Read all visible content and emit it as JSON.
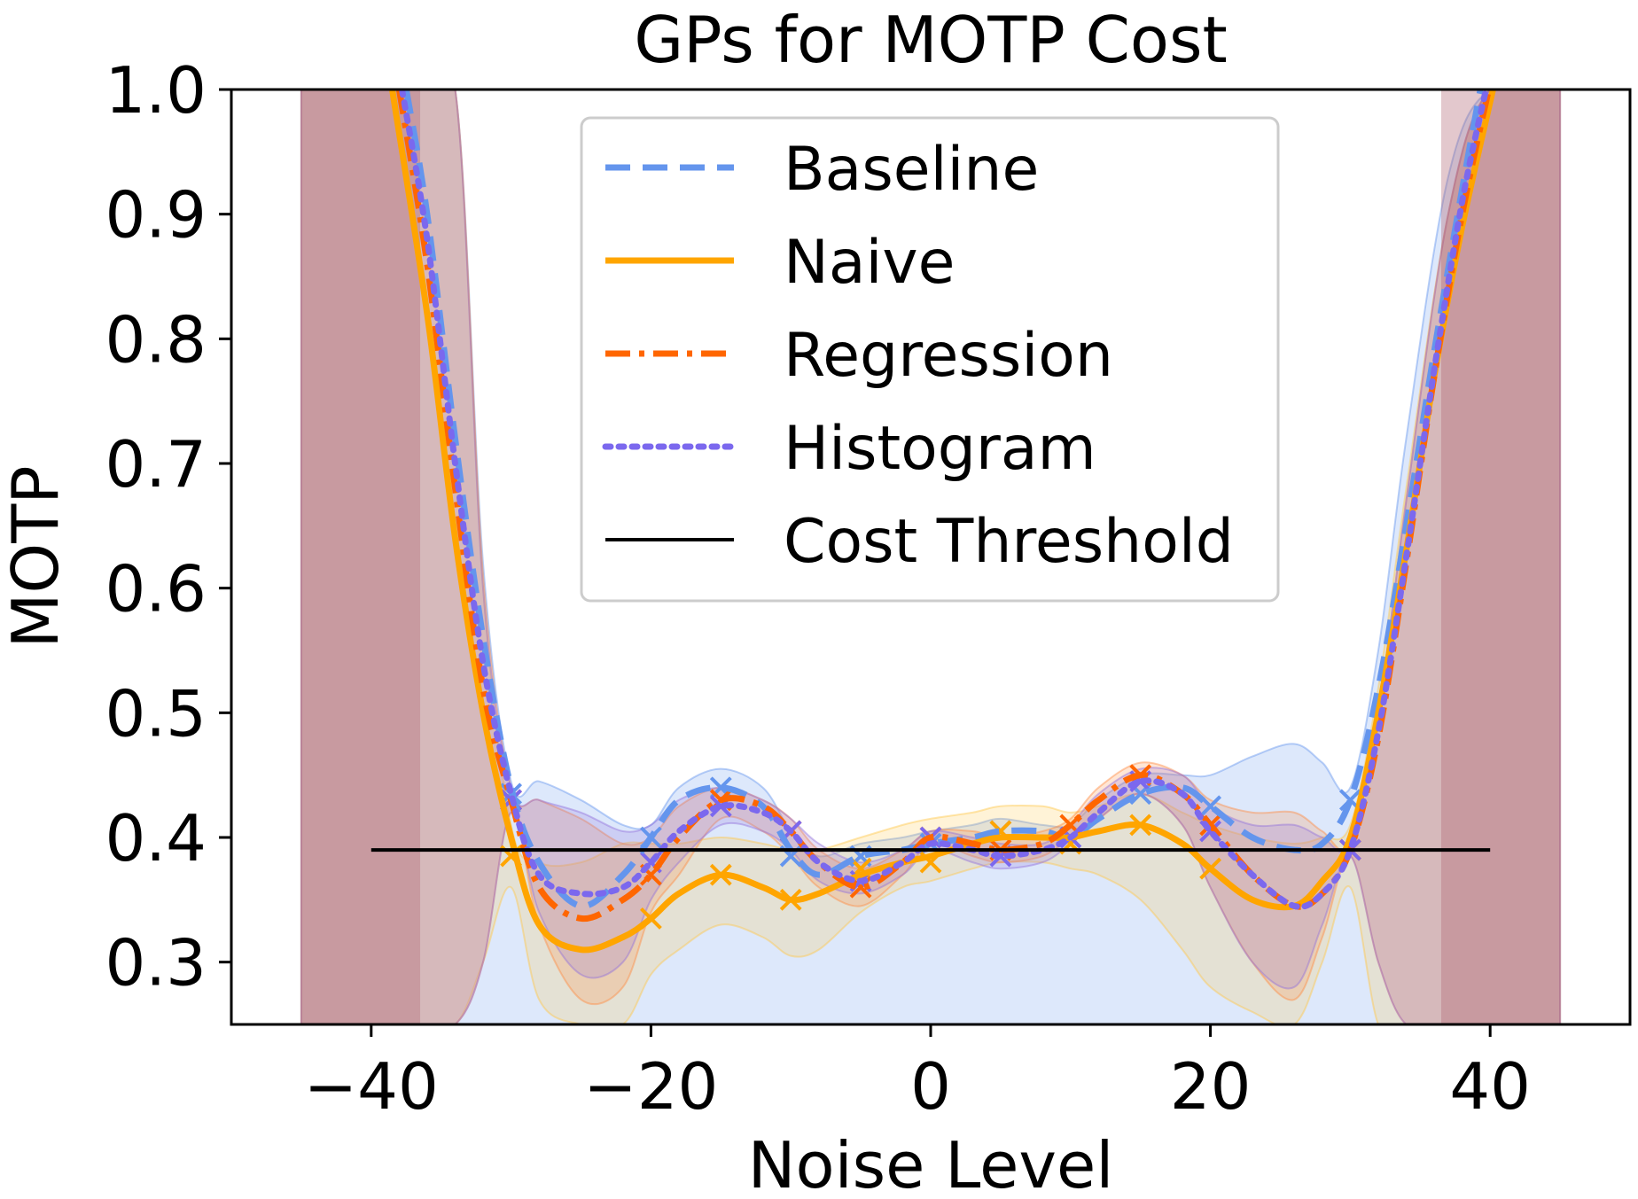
{
  "chart_data": {
    "type": "line",
    "title": "GPs for MOTP Cost",
    "xlabel": "Noise Level",
    "ylabel": "MOTP",
    "xlim": [
      -50,
      50
    ],
    "ylim": [
      0.25,
      1.0
    ],
    "xticks": [
      -40,
      -20,
      0,
      20,
      40
    ],
    "xtick_labels": [
      "−40",
      "−20",
      "0",
      "20",
      "40"
    ],
    "yticks": [
      0.3,
      0.4,
      0.5,
      0.6,
      0.7,
      0.8,
      0.9,
      1.0
    ],
    "ytick_labels": [
      "0.3",
      "0.4",
      "0.5",
      "0.6",
      "0.7",
      "0.8",
      "0.9",
      "1.0"
    ],
    "grid": false,
    "legend_position": "top-center",
    "series": [
      {
        "name": "Baseline",
        "color": "#6495ed",
        "style": "dashed",
        "band_color": "#6495ed",
        "observations": {
          "x": [
            -30,
            -20,
            -15,
            -10,
            -5,
            0,
            5,
            10,
            15,
            20,
            30
          ],
          "y": [
            0.435,
            0.4,
            0.44,
            0.385,
            0.385,
            0.395,
            0.405,
            0.4,
            0.435,
            0.425,
            0.43
          ]
        },
        "mean": {
          "x": [
            -37.5,
            -36,
            -34,
            -32,
            -30,
            -28,
            -25,
            -22,
            -20,
            -18,
            -15,
            -12,
            -10,
            -8,
            -5,
            -2,
            0,
            3,
            5,
            8,
            10,
            12,
            15,
            18,
            20,
            23,
            26,
            28,
            30,
            32,
            34,
            36,
            38,
            39.3
          ],
          "y": [
            1.0,
            0.9,
            0.72,
            0.56,
            0.44,
            0.38,
            0.345,
            0.37,
            0.4,
            0.43,
            0.44,
            0.425,
            0.39,
            0.37,
            0.385,
            0.39,
            0.395,
            0.4,
            0.405,
            0.405,
            0.4,
            0.415,
            0.435,
            0.44,
            0.425,
            0.4,
            0.39,
            0.395,
            0.43,
            0.52,
            0.65,
            0.79,
            0.92,
            1.0
          ]
        },
        "band": {
          "x": [
            -45,
            -40,
            -37,
            -34,
            -32,
            -30,
            -28,
            -25,
            -22,
            -20,
            -18,
            -15,
            -12,
            -10,
            -8,
            -5,
            -2,
            0,
            3,
            5,
            8,
            10,
            12,
            15,
            18,
            20,
            23,
            26,
            28,
            30,
            32,
            34,
            37,
            40,
            45
          ],
          "upper": [
            1.0,
            1.0,
            1.0,
            1.0,
            0.62,
            0.445,
            0.445,
            0.43,
            0.41,
            0.41,
            0.44,
            0.455,
            0.44,
            0.405,
            0.385,
            0.395,
            0.4,
            0.405,
            0.41,
            0.415,
            0.41,
            0.41,
            0.43,
            0.45,
            0.45,
            0.45,
            0.465,
            0.475,
            0.46,
            0.44,
            0.55,
            0.72,
            0.93,
            1.0,
            1.0
          ],
          "lower": [
            0.25,
            0.25,
            0.25,
            0.25,
            0.25,
            0.25,
            0.25,
            0.25,
            0.25,
            0.25,
            0.25,
            0.25,
            0.25,
            0.25,
            0.25,
            0.25,
            0.25,
            0.25,
            0.25,
            0.25,
            0.25,
            0.25,
            0.25,
            0.25,
            0.25,
            0.25,
            0.25,
            0.25,
            0.25,
            0.25,
            0.25,
            0.25,
            0.25,
            0.25,
            0.25
          ]
        }
      },
      {
        "name": "Naive",
        "color": "#ffa500",
        "style": "solid",
        "band_color": "#ffc84a",
        "observations": {
          "x": [
            -30,
            -20,
            -15,
            -10,
            -5,
            0,
            5,
            10,
            15,
            20,
            30
          ],
          "y": [
            0.385,
            0.335,
            0.37,
            0.35,
            0.375,
            0.38,
            0.405,
            0.395,
            0.41,
            0.375,
            0.39
          ]
        },
        "mean": {
          "x": [
            -38.5,
            -36,
            -34,
            -32,
            -30,
            -28,
            -25,
            -22,
            -20,
            -18,
            -15,
            -12,
            -10,
            -8,
            -5,
            -2,
            0,
            3,
            5,
            8,
            10,
            12,
            15,
            18,
            20,
            23,
            26,
            28,
            30,
            32,
            34,
            36,
            38,
            40.2
          ],
          "y": [
            1.0,
            0.82,
            0.64,
            0.5,
            0.4,
            0.33,
            0.31,
            0.32,
            0.335,
            0.355,
            0.37,
            0.36,
            0.35,
            0.355,
            0.37,
            0.38,
            0.385,
            0.395,
            0.4,
            0.4,
            0.4,
            0.405,
            0.41,
            0.395,
            0.375,
            0.35,
            0.345,
            0.365,
            0.4,
            0.5,
            0.63,
            0.77,
            0.89,
            1.0
          ]
        },
        "band": {
          "x": [
            -45,
            -40,
            -37,
            -34,
            -32,
            -30,
            -28,
            -25,
            -22,
            -20,
            -18,
            -15,
            -12,
            -10,
            -8,
            -5,
            -2,
            0,
            3,
            5,
            8,
            10,
            12,
            15,
            18,
            20,
            23,
            26,
            28,
            30,
            32,
            34,
            37,
            40,
            45
          ],
          "upper": [
            1.0,
            1.0,
            1.0,
            1.0,
            0.6,
            0.41,
            0.38,
            0.38,
            0.395,
            0.395,
            0.395,
            0.4,
            0.395,
            0.39,
            0.39,
            0.4,
            0.41,
            0.415,
            0.42,
            0.425,
            0.425,
            0.42,
            0.425,
            0.435,
            0.42,
            0.41,
            0.4,
            0.395,
            0.4,
            0.41,
            0.52,
            0.68,
            0.9,
            1.0,
            1.0
          ],
          "lower": [
            0.25,
            0.25,
            0.25,
            0.25,
            0.3,
            0.36,
            0.27,
            0.25,
            0.25,
            0.29,
            0.31,
            0.33,
            0.32,
            0.305,
            0.31,
            0.34,
            0.36,
            0.365,
            0.375,
            0.38,
            0.38,
            0.375,
            0.37,
            0.35,
            0.31,
            0.28,
            0.26,
            0.25,
            0.3,
            0.36,
            0.25,
            0.25,
            0.25,
            0.25,
            0.25
          ]
        }
      },
      {
        "name": "Regression",
        "color": "#ff6600",
        "style": "dashdot",
        "band_color": "#ff8c42",
        "observations": {
          "x": [
            -30,
            -20,
            -15,
            -10,
            -5,
            0,
            5,
            10,
            15,
            20,
            30
          ],
          "y": [
            0.43,
            0.37,
            0.43,
            0.405,
            0.36,
            0.4,
            0.39,
            0.41,
            0.45,
            0.41,
            0.39
          ]
        },
        "mean": {
          "x": [
            -38,
            -36,
            -34,
            -32,
            -30,
            -28,
            -25,
            -22,
            -20,
            -18,
            -15,
            -12,
            -10,
            -8,
            -5,
            -2,
            0,
            3,
            5,
            8,
            10,
            12,
            15,
            18,
            20,
            23,
            26,
            28,
            30,
            32,
            34,
            36,
            38,
            39.9
          ],
          "y": [
            1.0,
            0.86,
            0.68,
            0.52,
            0.43,
            0.36,
            0.335,
            0.35,
            0.37,
            0.4,
            0.43,
            0.425,
            0.405,
            0.38,
            0.36,
            0.38,
            0.4,
            0.395,
            0.39,
            0.395,
            0.41,
            0.43,
            0.45,
            0.435,
            0.41,
            0.37,
            0.345,
            0.355,
            0.39,
            0.48,
            0.62,
            0.77,
            0.9,
            1.0
          ]
        },
        "band": {
          "x": [
            -45,
            -40,
            -37,
            -34,
            -32,
            -30,
            -28,
            -25,
            -22,
            -20,
            -18,
            -15,
            -12,
            -10,
            -8,
            -5,
            -2,
            0,
            3,
            5,
            8,
            10,
            12,
            15,
            18,
            20,
            23,
            26,
            28,
            30,
            32,
            34,
            37,
            40,
            45
          ],
          "upper": [
            1.0,
            1.0,
            1.0,
            1.0,
            0.61,
            0.44,
            0.43,
            0.415,
            0.395,
            0.4,
            0.425,
            0.44,
            0.43,
            0.415,
            0.39,
            0.375,
            0.39,
            0.405,
            0.405,
            0.4,
            0.405,
            0.415,
            0.44,
            0.46,
            0.45,
            0.43,
            0.42,
            0.42,
            0.405,
            0.395,
            0.5,
            0.67,
            0.9,
            1.0,
            1.0
          ],
          "lower": [
            0.25,
            0.25,
            0.25,
            0.25,
            0.3,
            0.42,
            0.33,
            0.27,
            0.28,
            0.34,
            0.37,
            0.415,
            0.405,
            0.385,
            0.36,
            0.345,
            0.37,
            0.395,
            0.385,
            0.38,
            0.385,
            0.4,
            0.415,
            0.435,
            0.41,
            0.36,
            0.3,
            0.27,
            0.32,
            0.385,
            0.3,
            0.25,
            0.25,
            0.25,
            0.25
          ]
        }
      },
      {
        "name": "Histogram",
        "color": "#7b68ee",
        "style": "dotted",
        "band_color": "#9370db",
        "observations": {
          "x": [
            -30,
            -20,
            -15,
            -10,
            -5,
            0,
            5,
            10,
            15,
            20,
            30
          ],
          "y": [
            0.43,
            0.38,
            0.425,
            0.405,
            0.365,
            0.4,
            0.385,
            0.4,
            0.445,
            0.405,
            0.39
          ]
        },
        "mean": {
          "x": [
            -37.8,
            -36,
            -34,
            -32,
            -30,
            -28,
            -25,
            -22,
            -20,
            -18,
            -15,
            -12,
            -10,
            -8,
            -5,
            -2,
            0,
            3,
            5,
            8,
            10,
            12,
            15,
            18,
            20,
            23,
            26,
            28,
            30,
            32,
            34,
            36,
            38,
            39.7
          ],
          "y": [
            1.0,
            0.88,
            0.7,
            0.54,
            0.435,
            0.37,
            0.355,
            0.36,
            0.38,
            0.405,
            0.425,
            0.42,
            0.405,
            0.38,
            0.365,
            0.38,
            0.395,
            0.39,
            0.385,
            0.39,
            0.4,
            0.42,
            0.445,
            0.435,
            0.405,
            0.37,
            0.345,
            0.355,
            0.39,
            0.485,
            0.625,
            0.775,
            0.91,
            1.0
          ]
        },
        "band": {
          "x": [
            -45,
            -40,
            -37,
            -34,
            -32,
            -30,
            -28,
            -25,
            -22,
            -20,
            -18,
            -15,
            -12,
            -10,
            -8,
            -5,
            -2,
            0,
            3,
            5,
            8,
            10,
            12,
            15,
            18,
            20,
            23,
            26,
            28,
            30,
            32,
            34,
            37,
            40,
            45
          ],
          "upper": [
            1.0,
            1.0,
            1.0,
            1.0,
            0.6,
            0.44,
            0.43,
            0.42,
            0.405,
            0.41,
            0.43,
            0.44,
            0.43,
            0.415,
            0.395,
            0.38,
            0.39,
            0.405,
            0.4,
            0.395,
            0.395,
            0.41,
            0.435,
            0.455,
            0.45,
            0.425,
            0.41,
            0.41,
            0.4,
            0.395,
            0.5,
            0.67,
            0.9,
            1.0,
            1.0
          ],
          "lower": [
            0.25,
            0.25,
            0.25,
            0.25,
            0.3,
            0.42,
            0.34,
            0.29,
            0.3,
            0.35,
            0.38,
            0.41,
            0.405,
            0.39,
            0.365,
            0.355,
            0.37,
            0.39,
            0.38,
            0.375,
            0.38,
            0.395,
            0.415,
            0.435,
            0.41,
            0.36,
            0.3,
            0.28,
            0.33,
            0.385,
            0.3,
            0.25,
            0.25,
            0.25,
            0.25
          ]
        }
      }
    ],
    "cost_threshold": {
      "name": "Cost Threshold",
      "color": "#000000",
      "x": [
        -40,
        40
      ],
      "y": 0.39
    },
    "legend": [
      "Baseline",
      "Naive",
      "Regression",
      "Histogram",
      "Cost Threshold"
    ]
  }
}
